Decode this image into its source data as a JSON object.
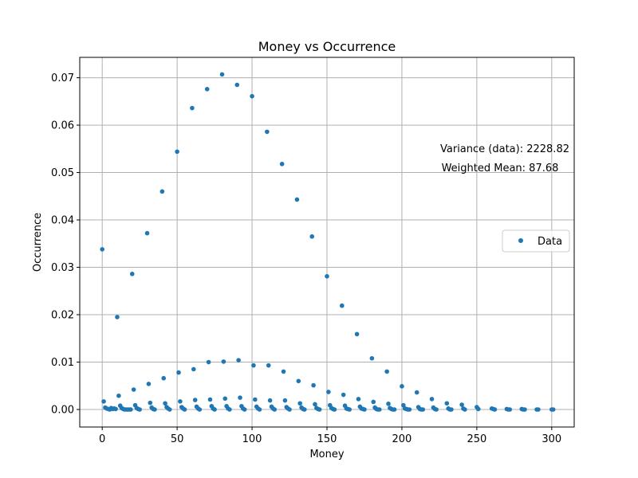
{
  "chart_data": {
    "type": "scatter",
    "title": "Money vs Occurrence",
    "xlabel": "Money",
    "ylabel": "Occurrence",
    "xlim": [
      -15,
      315
    ],
    "ylim": [
      -0.0037,
      0.0743
    ],
    "xticks": [
      0,
      50,
      100,
      150,
      200,
      250,
      300
    ],
    "xtick_labels": [
      "0",
      "50",
      "100",
      "150",
      "200",
      "250",
      "300"
    ],
    "yticks": [
      0.0,
      0.01,
      0.02,
      0.03,
      0.04,
      0.05,
      0.06,
      0.07
    ],
    "ytick_labels": [
      "0.00",
      "0.01",
      "0.02",
      "0.03",
      "0.04",
      "0.05",
      "0.06",
      "0.07"
    ],
    "grid": true,
    "legend_position": "center-right",
    "marker_color": "#1f77b4",
    "series": [
      {
        "name": "Data",
        "points": [
          [
            0,
            0.0338
          ],
          [
            10,
            0.0195
          ],
          [
            20,
            0.0286
          ],
          [
            30,
            0.0372
          ],
          [
            40,
            0.046
          ],
          [
            50,
            0.0544
          ],
          [
            60,
            0.0636
          ],
          [
            70,
            0.0676
          ],
          [
            80,
            0.0707
          ],
          [
            90,
            0.0685
          ],
          [
            100,
            0.0661
          ],
          [
            110,
            0.0586
          ],
          [
            120,
            0.0518
          ],
          [
            130,
            0.0443
          ],
          [
            140,
            0.0365
          ],
          [
            150,
            0.0281
          ],
          [
            160,
            0.0219
          ],
          [
            170,
            0.0159
          ],
          [
            180,
            0.0108
          ],
          [
            190,
            0.008
          ],
          [
            200,
            0.0049
          ],
          [
            210,
            0.0036
          ],
          [
            220,
            0.0022
          ],
          [
            230,
            0.0013
          ],
          [
            240,
            0.001
          ],
          [
            250,
            0.0005
          ],
          [
            260,
            0.0002
          ],
          [
            270,
            0.0001
          ],
          [
            280,
            0.0001
          ],
          [
            290,
            0.0
          ],
          [
            300,
            0.0
          ],
          [
            1,
            0.0017
          ],
          [
            11,
            0.0029
          ],
          [
            21,
            0.0042
          ],
          [
            31,
            0.0054
          ],
          [
            41,
            0.0066
          ],
          [
            51,
            0.0078
          ],
          [
            61,
            0.0085
          ],
          [
            71,
            0.01
          ],
          [
            81,
            0.0101
          ],
          [
            91,
            0.0104
          ],
          [
            101,
            0.0093
          ],
          [
            111,
            0.0093
          ],
          [
            121,
            0.008
          ],
          [
            131,
            0.006
          ],
          [
            141,
            0.0051
          ],
          [
            151,
            0.0037
          ],
          [
            161,
            0.0031
          ],
          [
            171,
            0.0022
          ],
          [
            181,
            0.0016
          ],
          [
            191,
            0.0012
          ],
          [
            201,
            0.0009
          ],
          [
            211,
            0.0005
          ],
          [
            221,
            0.0004
          ],
          [
            231,
            0.0002
          ],
          [
            241,
            0.0002
          ],
          [
            251,
            0.0001
          ],
          [
            261,
            0.0001
          ],
          [
            271,
            0.0
          ],
          [
            281,
            0.0
          ],
          [
            291,
            0.0
          ],
          [
            301,
            0.0
          ],
          [
            2,
            0.0004
          ],
          [
            12,
            0.0008
          ],
          [
            22,
            0.0009
          ],
          [
            32,
            0.0014
          ],
          [
            42,
            0.0013
          ],
          [
            52,
            0.0017
          ],
          [
            62,
            0.002
          ],
          [
            72,
            0.0021
          ],
          [
            82,
            0.0023
          ],
          [
            92,
            0.0025
          ],
          [
            102,
            0.0021
          ],
          [
            112,
            0.0019
          ],
          [
            122,
            0.0019
          ],
          [
            132,
            0.0013
          ],
          [
            142,
            0.0011
          ],
          [
            152,
            0.0009
          ],
          [
            162,
            0.0008
          ],
          [
            172,
            0.0006
          ],
          [
            182,
            0.0004
          ],
          [
            192,
            0.0003
          ],
          [
            202,
            0.0002
          ],
          [
            212,
            0.0001
          ],
          [
            222,
            0.0001
          ],
          [
            232,
            0.0
          ],
          [
            242,
            0.0
          ],
          [
            262,
            0.0
          ],
          [
            272,
            0.0
          ],
          [
            282,
            0.0
          ],
          [
            3,
            0.0002
          ],
          [
            13,
            0.0003
          ],
          [
            23,
            0.0003
          ],
          [
            33,
            0.0004
          ],
          [
            43,
            0.0005
          ],
          [
            53,
            0.0005
          ],
          [
            63,
            0.0006
          ],
          [
            73,
            0.0007
          ],
          [
            83,
            0.0007
          ],
          [
            93,
            0.0007
          ],
          [
            103,
            0.0006
          ],
          [
            113,
            0.0006
          ],
          [
            123,
            0.0005
          ],
          [
            133,
            0.0004
          ],
          [
            143,
            0.0003
          ],
          [
            153,
            0.0003
          ],
          [
            163,
            0.0002
          ],
          [
            173,
            0.0002
          ],
          [
            183,
            0.0001
          ],
          [
            193,
            0.0001
          ],
          [
            203,
            0.0001
          ],
          [
            213,
            0.0
          ],
          [
            223,
            0.0
          ],
          [
            233,
            0.0
          ],
          [
            4,
            0.0001
          ],
          [
            14,
            0.0001
          ],
          [
            24,
            0.0001
          ],
          [
            34,
            0.0001
          ],
          [
            44,
            0.0002
          ],
          [
            54,
            0.0002
          ],
          [
            64,
            0.0002
          ],
          [
            74,
            0.0002
          ],
          [
            84,
            0.0002
          ],
          [
            94,
            0.0002
          ],
          [
            104,
            0.0002
          ],
          [
            114,
            0.0002
          ],
          [
            124,
            0.0002
          ],
          [
            134,
            0.0001
          ],
          [
            144,
            0.0001
          ],
          [
            154,
            0.0001
          ],
          [
            164,
            0.0001
          ],
          [
            174,
            0.0001
          ],
          [
            184,
            0.0
          ],
          [
            194,
            0.0
          ],
          [
            204,
            0.0
          ],
          [
            214,
            0.0
          ],
          [
            5,
            0.0
          ],
          [
            15,
            0.0
          ],
          [
            25,
            0.0
          ],
          [
            35,
            0.0
          ],
          [
            45,
            0.0
          ],
          [
            55,
            0.0
          ],
          [
            65,
            0.0
          ],
          [
            75,
            0.0
          ],
          [
            85,
            0.0
          ],
          [
            95,
            0.0
          ],
          [
            105,
            0.0
          ],
          [
            115,
            0.0
          ],
          [
            125,
            0.0
          ],
          [
            135,
            0.0
          ],
          [
            145,
            0.0
          ],
          [
            155,
            0.0
          ],
          [
            165,
            0.0
          ],
          [
            175,
            0.0
          ],
          [
            185,
            0.0
          ],
          [
            195,
            0.0
          ],
          [
            205,
            0.0
          ],
          [
            6,
            0.0003
          ],
          [
            7,
            0.0001
          ],
          [
            8,
            0.0002
          ],
          [
            9,
            0.0001
          ],
          [
            16,
            0.0
          ],
          [
            17,
            0.0
          ],
          [
            18,
            0.0
          ],
          [
            19,
            0.0
          ]
        ]
      }
    ],
    "annotations": [
      {
        "text": "Variance (data): 2228.82",
        "position": "right-upper"
      },
      {
        "text": "Weighted Mean: 87.68",
        "position": "right-upper"
      }
    ]
  }
}
